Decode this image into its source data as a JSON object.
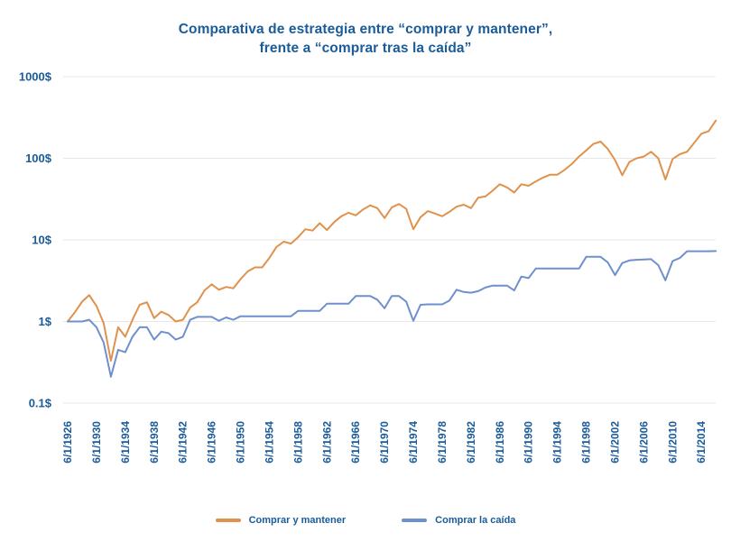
{
  "colors": {
    "title_text": "#1A5C99",
    "axis_text": "#1A5C99",
    "gridline": "#E7E7E7",
    "series_orange": "#E0924C",
    "series_blue": "#6F90CC"
  },
  "chart_data": {
    "type": "line",
    "title": "Comparativa de estrategia entre “comprar y mantener”, frente a “comprar tras la caída”",
    "title_lines": [
      "Comparativa de estrategia entre “comprar y mantener”,",
      "frente a “comprar tras la caída”"
    ],
    "y_axis": {
      "scale": "log",
      "ylim": [
        0.1,
        1000
      ],
      "tick_values": [
        1000,
        100,
        10,
        1,
        0.1
      ],
      "tick_labels": [
        "1000$",
        "100$",
        "10$",
        "1$",
        "0.1$"
      ],
      "grid": true
    },
    "x_axis": {
      "tick_years": [
        1926,
        1930,
        1934,
        1938,
        1942,
        1946,
        1950,
        1954,
        1958,
        1962,
        1966,
        1970,
        1974,
        1978,
        1982,
        1986,
        1990,
        1994,
        1998,
        2002,
        2006,
        2010,
        2014
      ],
      "tick_labels": [
        "6/1/1926",
        "6/1/1930",
        "6/1/1934",
        "6/1/1938",
        "6/1/1942",
        "6/1/1946",
        "6/1/1950",
        "6/1/1954",
        "6/1/1958",
        "6/1/1962",
        "6/1/1966",
        "6/1/1970",
        "6/1/1974",
        "6/1/1978",
        "6/1/1982",
        "6/1/1986",
        "6/1/1990",
        "6/1/1994",
        "6/1/1998",
        "6/1/2002",
        "6/1/2006",
        "6/1/2010",
        "6/1/2014"
      ],
      "label_rotation_deg": -90
    },
    "years": [
      1926,
      1927,
      1928,
      1929,
      1930,
      1931,
      1932,
      1933,
      1934,
      1935,
      1936,
      1937,
      1938,
      1939,
      1940,
      1941,
      1942,
      1943,
      1944,
      1945,
      1946,
      1947,
      1948,
      1949,
      1950,
      1951,
      1952,
      1953,
      1954,
      1955,
      1956,
      1957,
      1958,
      1959,
      1960,
      1961,
      1962,
      1963,
      1964,
      1965,
      1966,
      1967,
      1968,
      1969,
      1970,
      1971,
      1972,
      1973,
      1974,
      1975,
      1976,
      1977,
      1978,
      1979,
      1980,
      1981,
      1982,
      1983,
      1984,
      1985,
      1986,
      1987,
      1988,
      1989,
      1990,
      1991,
      1992,
      1993,
      1994,
      1995,
      1996,
      1997,
      1998,
      1999,
      2000,
      2001,
      2002,
      2003,
      2004,
      2005,
      2006,
      2007,
      2008,
      2009,
      2010,
      2011,
      2012,
      2013,
      2014,
      2015,
      2016
    ],
    "series": [
      {
        "id": "comprar-y-mantener",
        "name": "Comprar y mantener",
        "color": "#E0924C",
        "values": [
          1.0,
          1.3,
          1.75,
          2.1,
          1.55,
          0.95,
          0.33,
          0.85,
          0.65,
          1.05,
          1.6,
          1.72,
          1.1,
          1.32,
          1.2,
          1.0,
          1.05,
          1.48,
          1.72,
          2.4,
          2.85,
          2.45,
          2.65,
          2.55,
          3.3,
          4.1,
          4.6,
          4.6,
          6.0,
          8.2,
          9.5,
          9.0,
          10.8,
          13.5,
          13.0,
          16.0,
          13.2,
          16.5,
          19.5,
          21.5,
          20.0,
          23.5,
          26.5,
          24.5,
          18.5,
          25.0,
          27.5,
          24.0,
          13.5,
          19.0,
          22.5,
          21.0,
          19.5,
          22.0,
          25.5,
          27.0,
          24.5,
          33.0,
          34.0,
          40.0,
          48.0,
          44.0,
          38.0,
          48.0,
          46.0,
          52.0,
          58.0,
          63.0,
          63.0,
          72.0,
          85.0,
          105,
          125,
          150,
          160,
          130,
          95,
          62,
          90,
          100,
          105,
          120,
          100,
          55,
          98,
          112,
          120,
          155,
          200,
          215,
          290
        ]
      },
      {
        "id": "comprar-la-caida",
        "name": "Comprar la caída",
        "color": "#6F90CC",
        "values": [
          1.0,
          1.0,
          1.0,
          1.05,
          0.85,
          0.55,
          0.21,
          0.45,
          0.42,
          0.65,
          0.85,
          0.85,
          0.6,
          0.75,
          0.72,
          0.6,
          0.65,
          1.05,
          1.14,
          1.14,
          1.14,
          1.02,
          1.12,
          1.05,
          1.16,
          1.16,
          1.16,
          1.16,
          1.16,
          1.16,
          1.16,
          1.16,
          1.35,
          1.35,
          1.35,
          1.35,
          1.65,
          1.65,
          1.65,
          1.65,
          2.05,
          2.05,
          2.05,
          1.85,
          1.45,
          2.05,
          2.05,
          1.75,
          1.02,
          1.6,
          1.62,
          1.62,
          1.62,
          1.8,
          2.45,
          2.3,
          2.25,
          2.35,
          2.6,
          2.75,
          2.75,
          2.75,
          2.4,
          3.55,
          3.4,
          4.45,
          4.45,
          4.45,
          4.45,
          4.45,
          4.45,
          4.45,
          6.2,
          6.2,
          6.2,
          5.3,
          3.7,
          5.2,
          5.6,
          5.7,
          5.75,
          5.8,
          4.9,
          3.2,
          5.5,
          6.0,
          7.25,
          7.25,
          7.25,
          7.25,
          7.3
        ]
      }
    ],
    "legend": {
      "position": "bottom"
    }
  }
}
